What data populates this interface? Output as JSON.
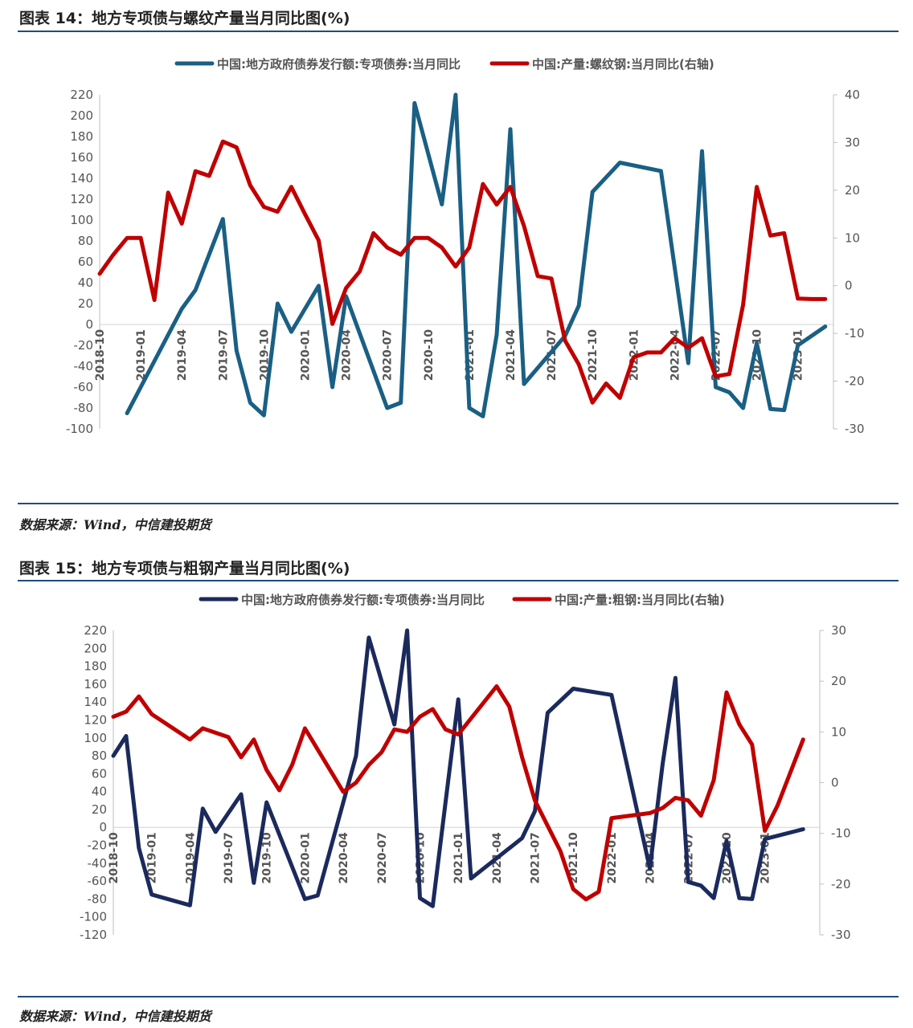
{
  "figures": [
    {
      "title": "图表 14：地方专项债与螺纹产量当月同比图(%)",
      "source": "数据来源：Wind，中信建投期货"
    },
    {
      "title": "图表 15：地方专项债与粗钢产量当月同比图(%)",
      "source": "数据来源：Wind，中信建投期货"
    }
  ],
  "chart_data": [
    {
      "type": "line",
      "x_start": "2018-10",
      "x_tick_labels": [
        "2018-10",
        "2019-01",
        "2019-04",
        "2019-07",
        "2019-10",
        "2020-01",
        "2020-04",
        "2020-07",
        "2020-10",
        "2021-01",
        "2021-04",
        "2021-07",
        "2021-10",
        "2022-01",
        "2022-04",
        "2022-07",
        "2022-10",
        "2023-01"
      ],
      "y_left": {
        "min": -100,
        "max": 220,
        "step": 20
      },
      "y_right": {
        "min": -30,
        "max": 40,
        "step": 10
      },
      "grid": false,
      "legend_position": "top",
      "series": [
        {
          "name": "中国:地方政府债券发行额:专项债券:当月同比",
          "axis": "left",
          "color": "#1a5f84",
          "points": [
            [
              "2018-12",
              -85
            ],
            [
              "2019-04",
              15
            ],
            [
              "2019-05",
              33
            ],
            [
              "2019-07",
              101
            ],
            [
              "2019-08",
              -25
            ],
            [
              "2019-09",
              -75
            ],
            [
              "2019-10",
              -87
            ],
            [
              "2019-11",
              20
            ],
            [
              "2019-12",
              -7
            ],
            [
              "2020-02",
              37
            ],
            [
              "2020-03",
              -60
            ],
            [
              "2020-04",
              27
            ],
            [
              "2020-07",
              -80
            ],
            [
              "2020-08",
              -75
            ],
            [
              "2020-09",
              212
            ],
            [
              "2020-11",
              115
            ],
            [
              "2020-12",
              220
            ],
            [
              "2021-01",
              -80
            ],
            [
              "2021-02",
              -88
            ],
            [
              "2021-03",
              -10
            ],
            [
              "2021-04",
              187
            ],
            [
              "2021-05",
              -57
            ],
            [
              "2021-08",
              -11
            ],
            [
              "2021-09",
              18
            ],
            [
              "2021-10",
              127
            ],
            [
              "2021-12",
              155
            ],
            [
              "2022-03",
              147
            ],
            [
              "2022-05",
              -37
            ],
            [
              "2022-06",
              166
            ],
            [
              "2022-07",
              -60
            ],
            [
              "2022-08",
              -65
            ],
            [
              "2022-09",
              -80
            ],
            [
              "2022-10",
              -18
            ],
            [
              "2022-11",
              -81
            ],
            [
              "2022-12",
              -82
            ],
            [
              "2023-01",
              -20
            ],
            [
              "2023-03",
              -2
            ]
          ]
        },
        {
          "name": "中国:产量:螺纹钢:当月同比(右轴)",
          "axis": "right",
          "color": "#c00000",
          "points": [
            [
              "2018-10",
              2.5
            ],
            [
              "2018-11",
              6.5
            ],
            [
              "2018-12",
              10
            ],
            [
              "2019-01",
              10
            ],
            [
              "2019-02",
              -3
            ],
            [
              "2019-03",
              19.5
            ],
            [
              "2019-04",
              13
            ],
            [
              "2019-05",
              24
            ],
            [
              "2019-06",
              23
            ],
            [
              "2019-07",
              30.2
            ],
            [
              "2019-08",
              29
            ],
            [
              "2019-09",
              21
            ],
            [
              "2019-10",
              16.5
            ],
            [
              "2019-11",
              15.5
            ],
            [
              "2019-12",
              20.7
            ],
            [
              "2020-01",
              15
            ],
            [
              "2020-02",
              9.5
            ],
            [
              "2020-03",
              -8
            ],
            [
              "2020-04",
              -0.5
            ],
            [
              "2020-05",
              3
            ],
            [
              "2020-06",
              11
            ],
            [
              "2020-07",
              8
            ],
            [
              "2020-08",
              6.5
            ],
            [
              "2020-09",
              10
            ],
            [
              "2020-10",
              10
            ],
            [
              "2020-11",
              8
            ],
            [
              "2020-12",
              4
            ],
            [
              "2021-01",
              8
            ],
            [
              "2021-02",
              21.3
            ],
            [
              "2021-03",
              17
            ],
            [
              "2021-04",
              20.7
            ],
            [
              "2021-05",
              12.5
            ],
            [
              "2021-06",
              2
            ],
            [
              "2021-07",
              1.5
            ],
            [
              "2021-08",
              -11.5
            ],
            [
              "2021-09",
              -16.5
            ],
            [
              "2021-10",
              -24.5
            ],
            [
              "2021-11",
              -20.5
            ],
            [
              "2021-12",
              -23.5
            ],
            [
              "2022-01",
              -15
            ],
            [
              "2022-02",
              -14
            ],
            [
              "2022-03",
              -14
            ],
            [
              "2022-04",
              -11
            ],
            [
              "2022-05",
              -13
            ],
            [
              "2022-06",
              -11
            ],
            [
              "2022-07",
              -19
            ],
            [
              "2022-08",
              -18.5
            ],
            [
              "2022-09",
              -4
            ],
            [
              "2022-10",
              20.7
            ],
            [
              "2022-11",
              10.5
            ],
            [
              "2022-12",
              11
            ],
            [
              "2023-01",
              -2.7
            ],
            [
              "2023-02",
              -2.8
            ],
            [
              "2023-03",
              -2.8
            ]
          ]
        }
      ]
    },
    {
      "type": "line",
      "x_start": "2018-10",
      "x_tick_labels": [
        "2018-10",
        "2019-01",
        "2019-04",
        "2019-07",
        "2019-10",
        "2020-01",
        "2020-04",
        "2020-07",
        "2020-10",
        "2021-01",
        "2021-04",
        "2021-07",
        "2021-10",
        "2022-01",
        "2022-04",
        "2022-07",
        "2022-10",
        "2023-01"
      ],
      "y_left": {
        "min": -120,
        "max": 220,
        "step": 20
      },
      "y_right": {
        "min": -30,
        "max": 30,
        "step": 10
      },
      "grid": false,
      "legend_position": "top",
      "series": [
        {
          "name": "中国:地方政府债券发行额:专项债券:当月同比",
          "axis": "left",
          "color": "#1b2a5c",
          "points": [
            [
              "2018-10",
              80
            ],
            [
              "2018-11",
              102
            ],
            [
              "2018-12",
              -23
            ],
            [
              "2019-01",
              -75
            ],
            [
              "2019-04",
              -87
            ],
            [
              "2019-05",
              21
            ],
            [
              "2019-06",
              -5
            ],
            [
              "2019-08",
              37
            ],
            [
              "2019-09",
              -62
            ],
            [
              "2019-10",
              28
            ],
            [
              "2020-01",
              -80
            ],
            [
              "2020-02",
              -76
            ],
            [
              "2020-05",
              80
            ],
            [
              "2020-06",
              212
            ],
            [
              "2020-08",
              115
            ],
            [
              "2020-09",
              220
            ],
            [
              "2020-10",
              -79
            ],
            [
              "2020-11",
              -88
            ],
            [
              "2021-01",
              143
            ],
            [
              "2021-02",
              -57
            ],
            [
              "2021-06",
              -12
            ],
            [
              "2021-07",
              18
            ],
            [
              "2021-08",
              128
            ],
            [
              "2021-10",
              155
            ],
            [
              "2022-01",
              148
            ],
            [
              "2022-04",
              -46
            ],
            [
              "2022-05",
              71
            ],
            [
              "2022-06",
              167
            ],
            [
              "2022-07",
              -61
            ],
            [
              "2022-08",
              -65
            ],
            [
              "2022-09",
              -79
            ],
            [
              "2022-10",
              -15
            ],
            [
              "2022-11",
              -79
            ],
            [
              "2022-12",
              -80
            ],
            [
              "2023-01",
              -13
            ],
            [
              "2023-04",
              -2
            ]
          ]
        },
        {
          "name": "中国:产量:粗钢:当月同比(右轴)",
          "axis": "right",
          "color": "#c00000",
          "points": [
            [
              "2018-10",
              13
            ],
            [
              "2018-11",
              14
            ],
            [
              "2018-12",
              17
            ],
            [
              "2019-01",
              13.5
            ],
            [
              "2019-04",
              8.5
            ],
            [
              "2019-05",
              10.7
            ],
            [
              "2019-07",
              9
            ],
            [
              "2019-08",
              5
            ],
            [
              "2019-09",
              8.5
            ],
            [
              "2019-10",
              2.5
            ],
            [
              "2019-11",
              -1.5
            ],
            [
              "2019-12",
              3.5
            ],
            [
              "2020-01",
              10.7
            ],
            [
              "2020-04",
              -1.8
            ],
            [
              "2020-05",
              0
            ],
            [
              "2020-06",
              3.5
            ],
            [
              "2020-07",
              6
            ],
            [
              "2020-08",
              10.5
            ],
            [
              "2020-09",
              10
            ],
            [
              "2020-10",
              13
            ],
            [
              "2020-11",
              14.5
            ],
            [
              "2020-12",
              10.5
            ],
            [
              "2021-01",
              9.5
            ],
            [
              "2021-04",
              19
            ],
            [
              "2021-05",
              15
            ],
            [
              "2021-06",
              5
            ],
            [
              "2021-07",
              -3.5
            ],
            [
              "2021-08",
              -8.5
            ],
            [
              "2021-09",
              -13.5
            ],
            [
              "2021-10",
              -21
            ],
            [
              "2021-11",
              -23
            ],
            [
              "2021-12",
              -21.5
            ],
            [
              "2022-01",
              -7
            ],
            [
              "2022-04",
              -6
            ],
            [
              "2022-05",
              -5
            ],
            [
              "2022-06",
              -3
            ],
            [
              "2022-07",
              -3.5
            ],
            [
              "2022-08",
              -6.5
            ],
            [
              "2022-09",
              0.5
            ],
            [
              "2022-10",
              17.8
            ],
            [
              "2022-11",
              11.5
            ],
            [
              "2022-12",
              7.5
            ],
            [
              "2023-01",
              -9.5
            ],
            [
              "2023-02",
              -4.5
            ],
            [
              "2023-04",
              8.5
            ]
          ]
        }
      ]
    }
  ]
}
